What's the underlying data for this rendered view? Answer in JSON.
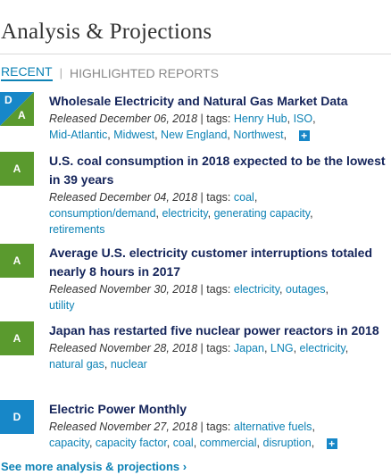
{
  "header": {
    "title": "Analysis & Projections"
  },
  "tabs": [
    {
      "label": "RECENT",
      "active": true
    },
    {
      "label": "HIGHLIGHTED REPORTS",
      "active": false
    }
  ],
  "tab_separator": "|",
  "tags_prefix": "tags:",
  "more_tags_label": "+",
  "items": [
    {
      "badge": [
        "D",
        "A"
      ],
      "title": "Wholesale Electricity and Natural Gas Market Data",
      "released": "Released December 06, 2018",
      "tags": [
        "Henry Hub",
        "ISO",
        "Mid-Atlantic",
        "Midwest",
        "New England",
        "Northwest"
      ],
      "has_more": true
    },
    {
      "badge": [
        "A"
      ],
      "title": "U.S. coal consumption in 2018 expected to be the lowest in 39 years",
      "released": "Released December 04, 2018",
      "tags": [
        "coal",
        "consumption/demand",
        "electricity",
        "generating capacity",
        "retirements"
      ],
      "has_more": false
    },
    {
      "badge": [
        "A"
      ],
      "title": "Average U.S. electricity customer interruptions totaled nearly 8 hours in 2017",
      "released": "Released November 30, 2018",
      "tags": [
        "electricity",
        "outages",
        "utility"
      ],
      "has_more": false
    },
    {
      "badge": [
        "A"
      ],
      "title": "Japan has restarted five nuclear power reactors in 2018",
      "released": "Released November 28, 2018",
      "tags": [
        "Japan",
        "LNG",
        "electricity",
        "natural gas",
        "nuclear"
      ],
      "has_more": false
    },
    {
      "badge": [
        "D"
      ],
      "title": "Electric Power Monthly",
      "released": "Released November 27, 2018",
      "tags": [
        "alternative fuels",
        "capacity",
        "capacity factor",
        "coal",
        "commercial",
        "disruption"
      ],
      "has_more": true
    }
  ],
  "footer": {
    "see_more_label": "See more analysis & projections ›"
  },
  "colors": {
    "analysis_badge": "#5a9a2e",
    "data_badge": "#1787c8",
    "link": "#0d82b5",
    "title": "#14245a"
  }
}
